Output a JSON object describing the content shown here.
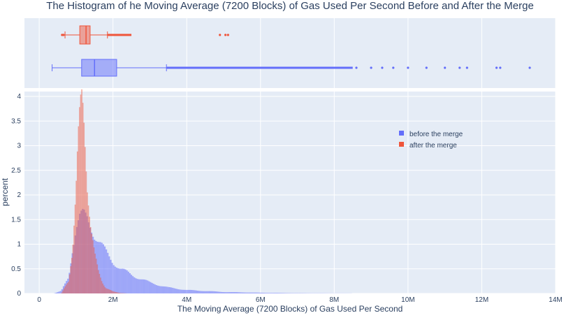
{
  "chart_data": {
    "type": "histogram",
    "title": "The Histogram of he Moving Average (7200 Blocks) of Gas Used Per Second Before and After the Merge",
    "xlabel": "The Moving Average (7200 Blocks) of Gas Used Per Second",
    "ylabel": "percent",
    "x_range": [
      -0.4,
      14
    ],
    "y_range": [
      0,
      4.1
    ],
    "x_ticks": [
      0,
      2,
      4,
      6,
      8,
      10,
      12,
      14
    ],
    "x_tick_labels": [
      "0",
      "2M",
      "4M",
      "6M",
      "8M",
      "10M",
      "12M",
      "14M"
    ],
    "y_ticks": [
      0,
      0.5,
      1,
      1.5,
      2,
      2.5,
      3,
      3.5,
      4
    ],
    "y_tick_labels": [
      "0",
      "0.5",
      "1",
      "1.5",
      "2",
      "2.5",
      "3",
      "3.5",
      "4"
    ],
    "legend": {
      "position": "top-right",
      "entries": [
        "before the merge",
        "after the merge"
      ]
    },
    "grid": true,
    "series": [
      {
        "name": "before the merge",
        "color": "#636efa",
        "histogram": {
          "bin_width": 0.04,
          "x": [
            0.4,
            0.6,
            0.8,
            0.9,
            1.0,
            1.1,
            1.2,
            1.3,
            1.4,
            1.5,
            1.6,
            1.8,
            2.0,
            2.2,
            2.5,
            3.0,
            3.5,
            4.0,
            5.0,
            6.0,
            7.0,
            8.0,
            9.0,
            10.0
          ],
          "percent": [
            0.0,
            0.05,
            0.35,
            0.9,
            1.3,
            1.5,
            1.58,
            1.55,
            1.4,
            1.2,
            1.05,
            0.85,
            0.65,
            0.5,
            0.38,
            0.22,
            0.12,
            0.07,
            0.03,
            0.015,
            0.006,
            0.003,
            0.001,
            0.0
          ]
        },
        "box": {
          "min": 0.35,
          "q1": 1.15,
          "median": 1.5,
          "q3": 2.1,
          "upper_fence": 3.45,
          "outliers_range": [
            3.45,
            8.5
          ],
          "outliers_sparse": [
            8.6,
            9.0,
            9.3,
            9.6,
            10.0,
            10.5,
            11.0,
            11.4,
            11.6,
            12.4,
            12.5,
            13.3
          ]
        }
      },
      {
        "name": "after the merge",
        "color": "#ef553b",
        "histogram": {
          "bin_width": 0.03,
          "x": [
            0.6,
            0.8,
            0.9,
            1.0,
            1.05,
            1.1,
            1.15,
            1.2,
            1.25,
            1.3,
            1.4,
            1.5,
            1.6,
            1.7,
            1.8,
            2.0,
            2.2,
            2.4
          ],
          "percent": [
            0.0,
            0.25,
            0.9,
            2.2,
            3.0,
            3.5,
            3.85,
            3.6,
            3.0,
            2.3,
            1.4,
            0.8,
            0.45,
            0.25,
            0.12,
            0.04,
            0.01,
            0.0
          ]
        },
        "box": {
          "min": 0.7,
          "q1": 1.1,
          "median": 1.27,
          "q3": 1.38,
          "upper_fence": 1.85,
          "outliers_range": [
            1.85,
            2.5
          ],
          "outliers_sparse": [
            0.62,
            0.66,
            4.9,
            5.05,
            5.12
          ]
        }
      }
    ]
  }
}
